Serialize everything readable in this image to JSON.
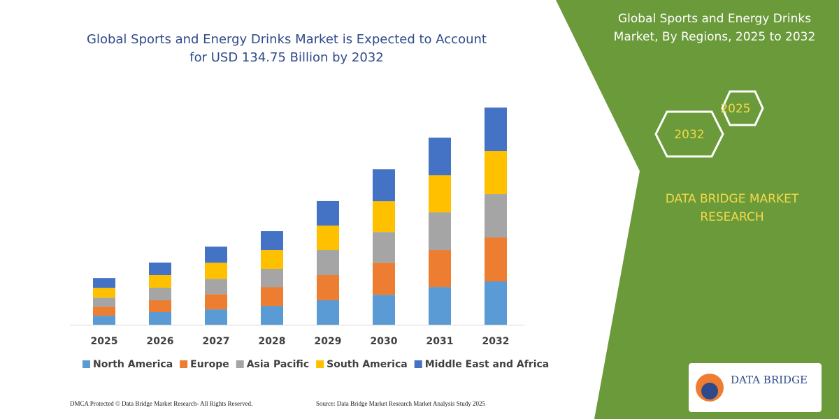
{
  "chart_data": {
    "type": "stacked-bar",
    "title_lines": [
      "Global Sports and Energy Drinks Market is Expected to Account",
      "for USD 134.75 Billion by 2032"
    ],
    "categories": [
      "2025",
      "2026",
      "2027",
      "2028",
      "2029",
      "2030",
      "2031",
      "2032"
    ],
    "series": [
      {
        "name": "North America",
        "color": "#5b9bd5",
        "values": [
          5.6,
          7.8,
          9.5,
          11.7,
          15.2,
          18.6,
          23.4,
          26.9
        ]
      },
      {
        "name": "Europe",
        "color": "#ed7d31",
        "values": [
          5.6,
          7.4,
          9.5,
          11.7,
          15.6,
          19.9,
          23.0,
          27.3
        ]
      },
      {
        "name": "Asia Pacific",
        "color": "#a5a5a5",
        "values": [
          5.6,
          7.8,
          9.5,
          11.3,
          15.6,
          19.1,
          23.4,
          26.9
        ]
      },
      {
        "name": "South America",
        "color": "#ffc000",
        "values": [
          6.1,
          7.8,
          10.0,
          11.7,
          15.2,
          19.1,
          23.0,
          26.9
        ]
      },
      {
        "name": "Middle East and Africa",
        "color": "#4472c4",
        "values": [
          6.1,
          7.8,
          10.0,
          11.7,
          15.2,
          19.9,
          23.4,
          26.9
        ]
      }
    ]
  },
  "side_panel": {
    "title_lines": [
      "Global Sports and Energy Drinks",
      "Market, By Regions, 2025 to 2032"
    ],
    "hex_start": "2025",
    "hex_end": "2032",
    "brand_lines": [
      "DATA BRIDGE MARKET",
      "RESEARCH"
    ],
    "logo_text": "DATA BRIDGE"
  },
  "footer": {
    "left": "DMCA Protected © Data Bridge Market Research- All Rights Reserved.",
    "right": "Source: Data Bridge Market Research Market Analysis Study 2025"
  }
}
